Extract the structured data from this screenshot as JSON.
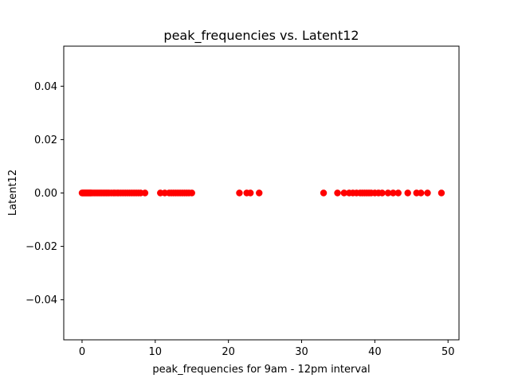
{
  "chart_data": {
    "type": "scatter",
    "title": "peak_frequencies vs. Latent12",
    "xlabel": "peak_frequencies for 9am - 12pm interval",
    "ylabel": "Latent12",
    "xlim": [
      -2.5,
      51.5
    ],
    "ylim": [
      -0.055,
      0.055
    ],
    "x_ticks": [
      0,
      10,
      20,
      30,
      40,
      50
    ],
    "x_tick_labels": [
      "0",
      "10",
      "20",
      "30",
      "40",
      "50"
    ],
    "y_ticks": [
      -0.04,
      -0.02,
      0.0,
      0.02,
      0.04
    ],
    "y_tick_labels": [
      "−0.04",
      "−0.02",
      "0.00",
      "0.02",
      "0.04"
    ],
    "grid": false,
    "marker_color": "#ff0000",
    "series": [
      {
        "x": [
          0.0,
          0.1,
          0.2,
          0.3,
          0.4,
          0.5,
          0.6,
          0.7,
          0.8,
          0.9,
          1.0,
          1.1,
          1.2,
          1.3,
          1.5,
          1.7,
          1.9,
          2.1,
          2.3,
          2.5,
          2.7,
          2.9,
          3.1,
          3.3,
          3.5,
          3.7,
          4.0,
          4.3,
          4.5,
          4.8,
          5.0,
          5.3,
          5.6,
          5.9,
          6.2,
          6.5,
          6.8,
          7.1,
          7.4,
          7.7,
          8.0,
          8.6,
          10.7,
          11.3,
          11.9,
          12.2,
          12.5,
          12.8,
          13.1,
          13.4,
          13.7,
          14.0,
          14.3,
          14.6,
          15.0,
          21.5,
          22.5,
          23.0,
          24.2,
          33.0,
          34.9,
          35.8,
          36.5,
          37.0,
          37.5,
          38.0,
          38.3,
          38.6,
          38.9,
          39.2,
          39.5,
          40.0,
          40.5,
          41.0,
          41.8,
          42.5,
          43.2,
          44.5,
          45.7,
          46.3,
          47.2,
          49.1
        ],
        "y": [
          0,
          0,
          0,
          0,
          0,
          0,
          0,
          0,
          0,
          0,
          0,
          0,
          0,
          0,
          0,
          0,
          0,
          0,
          0,
          0,
          0,
          0,
          0,
          0,
          0,
          0,
          0,
          0,
          0,
          0,
          0,
          0,
          0,
          0,
          0,
          0,
          0,
          0,
          0,
          0,
          0,
          0,
          0,
          0,
          0,
          0,
          0,
          0,
          0,
          0,
          0,
          0,
          0,
          0,
          0,
          0,
          0,
          0,
          0,
          0,
          0,
          0,
          0,
          0,
          0,
          0,
          0,
          0,
          0,
          0,
          0,
          0,
          0,
          0,
          0,
          0,
          0,
          0,
          0,
          0,
          0,
          0
        ]
      }
    ]
  }
}
